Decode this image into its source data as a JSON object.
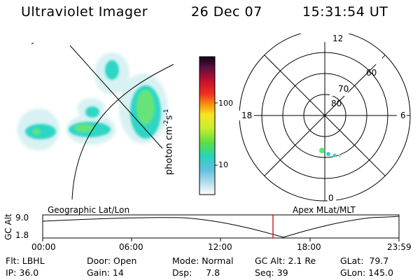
{
  "header": {
    "instrument": "Ultraviolet Imager",
    "date": "26 Dec 07",
    "time": "15:31:54 UT"
  },
  "colorbar": {
    "label_main": "photon cm",
    "label_sup1": "-2",
    "label_mid": "s",
    "label_sup2": "-1",
    "tick_100": "100",
    "tick_10": "10"
  },
  "polar_plot": {
    "lat_labels": [
      "80",
      "70",
      "60"
    ],
    "mlt_labels": {
      "top": "12",
      "bottom": "0",
      "left": "18",
      "right": "6"
    }
  },
  "timeline": {
    "left_label": "Geographic Lat/Lon",
    "right_label": "Apex MLat/MLT",
    "y_axis_label": "GC Alt",
    "y_max": "9.0",
    "y_min": "1.8",
    "x_ticks": [
      "00:00",
      "06:00",
      "12:00",
      "18:00",
      "23:59"
    ]
  },
  "info": {
    "row1": [
      "Flt: LBHL",
      "Door: Open",
      "Mode: Normal",
      "GC Alt: 2.1 Re",
      "GLat:  79.7"
    ],
    "row2": [
      "IP: 36.0",
      "Gain: 14",
      "Dsp:     7.8",
      "Seq: 39",
      "GLon: 145.0"
    ]
  },
  "colors": {
    "marker_line": "#cc0000",
    "aurora_faint": "#d6f2f2",
    "aurora_mid": "#2ed6c8",
    "aurora_bright": "#5fe67a"
  }
}
